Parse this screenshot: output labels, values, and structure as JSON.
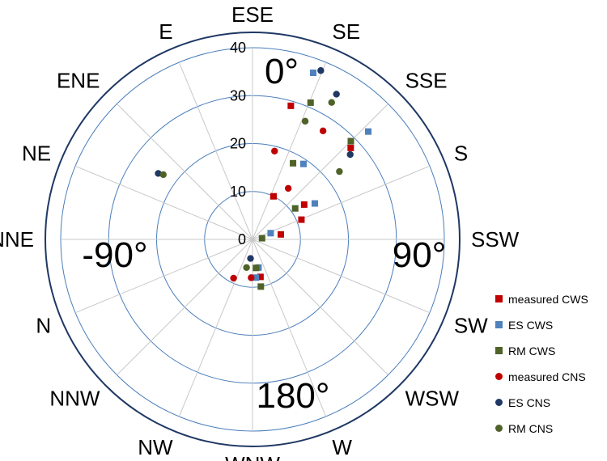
{
  "chart_data": {
    "type": "scatter",
    "coordinate_system": "polar",
    "direction": "clockwise",
    "zero_at": "top",
    "r_ticks": [
      "0",
      "10",
      "20",
      "30",
      "40"
    ],
    "r_tick_values": [
      0,
      10,
      20,
      30,
      40
    ],
    "r_range": [
      0,
      40
    ],
    "grid": true,
    "compass_labels": [
      {
        "label": "ESE",
        "angle": 0
      },
      {
        "label": "SE",
        "angle": 22.5
      },
      {
        "label": "SSE",
        "angle": 45
      },
      {
        "label": "S",
        "angle": 67.5
      },
      {
        "label": "SSW",
        "angle": 90
      },
      {
        "label": "SW",
        "angle": 112.5
      },
      {
        "label": "WSW",
        "angle": 135
      },
      {
        "label": "W",
        "angle": 157.5
      },
      {
        "label": "WNW",
        "angle": 180
      },
      {
        "label": "NW",
        "angle": 202.5
      },
      {
        "label": "NNW",
        "angle": 225
      },
      {
        "label": "N",
        "angle": 247.5
      },
      {
        "label": "NNE",
        "angle": 270
      },
      {
        "label": "NE",
        "angle": 292.5
      },
      {
        "label": "ENE",
        "angle": 315
      },
      {
        "label": "E",
        "angle": 337.5
      }
    ],
    "angle_labels": [
      {
        "text": "0°",
        "angle": 0
      },
      {
        "text": "90°",
        "angle": 90
      },
      {
        "text": "180°",
        "angle": 180
      },
      {
        "text": "-90°",
        "angle": 270
      }
    ],
    "legend_position": "right",
    "series": [
      {
        "name": "measured CWS",
        "marker": "square",
        "color": "#c00000",
        "points": [
          {
            "theta": 26,
            "r": 10
          },
          {
            "theta": 80,
            "r": 6
          },
          {
            "theta": 68,
            "r": 11
          },
          {
            "theta": 56,
            "r": 13
          },
          {
            "theta": 16,
            "r": 29
          },
          {
            "theta": 47,
            "r": 28
          },
          {
            "theta": 168,
            "r": 8
          }
        ]
      },
      {
        "name": "ES CWS",
        "marker": "square",
        "color": "#4f81bd",
        "points": [
          {
            "theta": 71,
            "r": 4
          },
          {
            "theta": 60,
            "r": 15
          },
          {
            "theta": 34,
            "r": 19
          },
          {
            "theta": 47,
            "r": 33
          },
          {
            "theta": 20,
            "r": 37
          },
          {
            "theta": 175,
            "r": 8
          },
          {
            "theta": 168,
            "r": 6
          }
        ]
      },
      {
        "name": "RM CWS",
        "marker": "square",
        "color": "#4f6228",
        "points": [
          {
            "theta": 83,
            "r": 2
          },
          {
            "theta": 54,
            "r": 11
          },
          {
            "theta": 28,
            "r": 18
          },
          {
            "theta": 23,
            "r": 31
          },
          {
            "theta": 45,
            "r": 29
          },
          {
            "theta": 170,
            "r": 10
          },
          {
            "theta": 173,
            "r": 6
          }
        ]
      },
      {
        "name": "measured CNS",
        "marker": "circle",
        "color": "#c00000",
        "points": [
          {
            "theta": 35,
            "r": 13
          },
          {
            "theta": 14,
            "r": 19
          },
          {
            "theta": 33,
            "r": 27
          },
          {
            "theta": 206,
            "r": 9
          },
          {
            "theta": 182,
            "r": 8
          }
        ]
      },
      {
        "name": "ES CNS",
        "marker": "circle",
        "color": "#1f3864",
        "points": [
          {
            "theta": 30,
            "r": 35
          },
          {
            "theta": 22,
            "r": 38
          },
          {
            "theta": 49,
            "r": 27
          },
          {
            "theta": 305,
            "r": 24
          },
          {
            "theta": 186,
            "r": 4
          }
        ]
      },
      {
        "name": "RM CNS",
        "marker": "circle",
        "color": "#4f6228",
        "points": [
          {
            "theta": 52,
            "r": 23
          },
          {
            "theta": 30,
            "r": 33
          },
          {
            "theta": 24,
            "r": 27
          },
          {
            "theta": 306,
            "r": 23
          },
          {
            "theta": 192,
            "r": 6
          }
        ]
      }
    ]
  }
}
